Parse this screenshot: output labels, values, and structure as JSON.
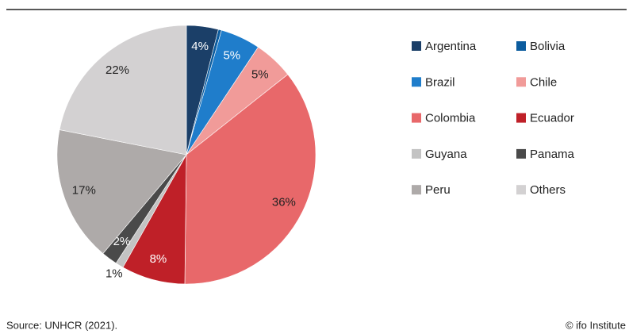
{
  "chart_data": {
    "type": "pie",
    "categories": [
      "Argentina",
      "Bolivia",
      "Brazil",
      "Chile",
      "Colombia",
      "Ecuador",
      "Guyana",
      "Panama",
      "Peru",
      "Others"
    ],
    "values": [
      4,
      0.4,
      5,
      5,
      36,
      8,
      1,
      2,
      17,
      22
    ],
    "value_labels": [
      "4%",
      null,
      "5%",
      "5%",
      "36%",
      "8%",
      "1%",
      "2%",
      "17%",
      "22%"
    ],
    "colors": [
      "#1b3f68",
      "#0c5c9e",
      "#1f7dcb",
      "#f19b99",
      "#e8686a",
      "#bf2028",
      "#c3c3c3",
      "#4a4a4a",
      "#aeaaa9",
      "#d3d1d2"
    ],
    "legend": "right",
    "source": "Source: UNHCR (2021).",
    "credit": "© ifo Institute"
  }
}
